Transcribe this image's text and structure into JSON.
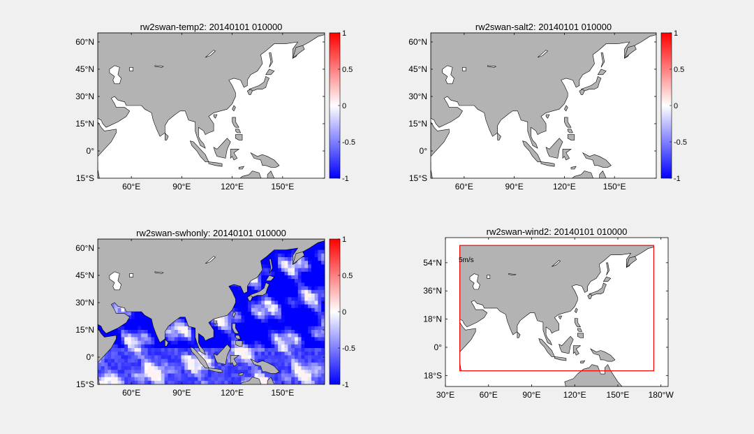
{
  "figure": {
    "background": "#f0f0f0",
    "ocean_color": "#ffffff",
    "land_color": "#b3b3b3",
    "coast_color": "#000000"
  },
  "chart_data": [
    {
      "type": "heatmap",
      "title": "rw2swan-temp2: 20140101 010000",
      "xlim": [
        40,
        175
      ],
      "ylim": [
        -15,
        65
      ],
      "x_ticks": [
        60,
        90,
        120,
        150
      ],
      "x_tick_labels": [
        "60°E",
        "90°E",
        "120°E",
        "150°E"
      ],
      "y_ticks": [
        60,
        45,
        30,
        15,
        0,
        -15
      ],
      "y_tick_labels": [
        "60°N",
        "45°N",
        "30°N",
        "15°N",
        "0°",
        "15°S"
      ],
      "colorbar": {
        "range": [
          -1,
          1
        ],
        "ticks": [
          1,
          0.5,
          0,
          -0.5,
          -1
        ],
        "tick_labels": [
          "1",
          "0.5",
          "0",
          "-0.5",
          "-1"
        ],
        "colors": [
          "#0000ff",
          "#ffffff",
          "#ff0000"
        ]
      },
      "field": "uniform zero (white ocean)"
    },
    {
      "type": "heatmap",
      "title": "rw2swan-salt2: 20140101 010000",
      "xlim": [
        40,
        175
      ],
      "ylim": [
        -15,
        65
      ],
      "x_ticks": [
        60,
        90,
        120,
        150
      ],
      "x_tick_labels": [
        "60°E",
        "90°E",
        "120°E",
        "150°E"
      ],
      "y_ticks": [
        60,
        45,
        30,
        15,
        0,
        -15
      ],
      "y_tick_labels": [
        "60°N",
        "45°N",
        "30°N",
        "15°N",
        "0°",
        "15°S"
      ],
      "colorbar": {
        "range": [
          -1,
          1
        ],
        "ticks": [
          1,
          0.5,
          0,
          -0.5,
          -1
        ],
        "tick_labels": [
          "1",
          "0.5",
          "0",
          "-0.5",
          "-1"
        ],
        "colors": [
          "#0000ff",
          "#ffffff",
          "#ff0000"
        ]
      },
      "field": "uniform zero (white ocean)"
    },
    {
      "type": "heatmap",
      "title": "rw2swan-swhonly: 20140101 010000",
      "xlim": [
        40,
        175
      ],
      "ylim": [
        -15,
        65
      ],
      "x_ticks": [
        60,
        90,
        120,
        150
      ],
      "x_tick_labels": [
        "60°E",
        "90°E",
        "120°E",
        "150°E"
      ],
      "y_ticks": [
        60,
        45,
        30,
        15,
        0,
        -15
      ],
      "y_tick_labels": [
        "60°N",
        "45°N",
        "30°N",
        "15°N",
        "0°",
        "15°S"
      ],
      "colorbar": {
        "range": [
          -1,
          1
        ],
        "ticks": [
          1,
          0.5,
          0,
          -0.5,
          -1
        ],
        "tick_labels": [
          "1",
          "0.5",
          "0",
          "-0.5",
          "-1"
        ],
        "colors": [
          "#0000ff",
          "#ffffff",
          "#ff0000"
        ]
      },
      "field": "mostly near -1 (blue) with whitish streaks near 0"
    },
    {
      "type": "heatmap",
      "title": "rw2swan-wind2: 20140101 010000",
      "xlim": [
        30,
        185
      ],
      "ylim": [
        -25,
        70
      ],
      "x_ticks": [
        30,
        60,
        90,
        120,
        150,
        180
      ],
      "x_tick_labels": [
        "30°E",
        "60°E",
        "90°E",
        "120°E",
        "150°E",
        "180°W"
      ],
      "y_ticks": [
        54,
        36,
        18,
        0,
        -18
      ],
      "y_tick_labels": [
        "54°N",
        "36°N",
        "18°N",
        "0°",
        "18°S"
      ],
      "annotation": "5m/s",
      "domain_box": {
        "lon": [
          40,
          175
        ],
        "lat": [
          -15,
          65
        ],
        "color": "#ff0000"
      }
    }
  ]
}
